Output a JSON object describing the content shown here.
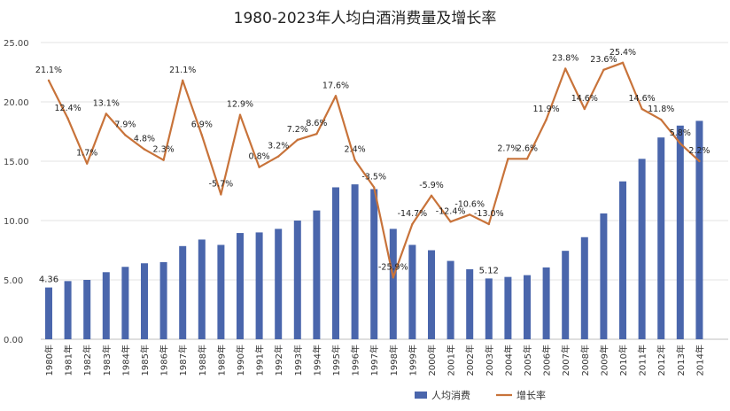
{
  "chart_data": {
    "type": "bar+line",
    "title": "1980-2023年人均白酒消费量及增长率",
    "categories": [
      "1980年",
      "1981年",
      "1982年",
      "1983年",
      "1984年",
      "1985年",
      "1986年",
      "1987年",
      "1988年",
      "1989年",
      "1990年",
      "1991年",
      "1992年",
      "1993年",
      "1994年",
      "1995年",
      "1996年",
      "1997年",
      "1998年",
      "1999年",
      "2000年",
      "2001年",
      "2002年",
      "2003年",
      "2004年",
      "2005年",
      "2006年",
      "2007年",
      "2008年",
      "2009年",
      "2010年",
      "2011年",
      "2012年",
      "2013年",
      "2014年"
    ],
    "ylim": [
      0,
      25
    ],
    "yticks": [
      "0.00",
      "5.00",
      "10.00",
      "15.00",
      "20.00",
      "25.00"
    ],
    "grid": true,
    "legend_position": "bottom",
    "series": [
      {
        "name": "人均消费",
        "type": "bar",
        "color": "#4a66ac",
        "values": [
          4.36,
          4.9,
          5.0,
          5.65,
          6.1,
          6.4,
          6.5,
          7.85,
          8.4,
          7.95,
          8.95,
          9.0,
          9.3,
          10.0,
          10.85,
          12.8,
          13.05,
          12.65,
          9.3,
          7.95,
          7.5,
          6.6,
          5.9,
          5.12,
          5.25,
          5.4,
          6.05,
          7.45,
          8.6,
          10.6,
          13.3,
          15.2,
          17.0,
          18.0,
          18.4
        ],
        "labels": [
          "4.36",
          "",
          "",
          "",
          "",
          "",
          "",
          "",
          "",
          "",
          "",
          "",
          "",
          "",
          "",
          "",
          "",
          "",
          "",
          "",
          "",
          "",
          "",
          "5.12",
          "",
          "",
          "",
          "",
          "",
          "",
          "",
          "",
          "",
          "",
          ""
        ]
      },
      {
        "name": "增长率",
        "type": "line",
        "color": "#c8733a",
        "values": [
          21.8,
          18.6,
          14.8,
          19.0,
          17.2,
          16.0,
          15.1,
          21.8,
          17.2,
          12.2,
          18.9,
          14.5,
          15.4,
          16.8,
          17.3,
          20.5,
          15.1,
          12.8,
          5.2,
          9.7,
          12.1,
          9.9,
          10.5,
          9.7,
          15.2,
          15.2,
          18.5,
          22.8,
          19.4,
          22.7,
          23.3,
          19.4,
          18.5,
          16.5,
          15.0
        ],
        "labels": [
          "21.1%",
          "12.4%",
          "1.7%",
          "13.1%",
          "7.9%",
          "4.8%",
          "2.3%",
          "21.1%",
          "6.9%",
          "-5.7%",
          "12.9%",
          "0.8%",
          "3.2%",
          "7.2%",
          "8.6%",
          "17.6%",
          "2.4%",
          "-3.5%",
          "-25.9%",
          "-14.7%",
          "-5.9%",
          "-12.4%",
          "-10.6%",
          "-13.0%",
          "2.7%",
          "2.6%",
          "11.9%",
          "23.8%",
          "14.6%",
          "23.6%",
          "25.4%",
          "14.6%",
          "11.8%",
          "5.8%",
          "2.2%"
        ]
      }
    ]
  }
}
